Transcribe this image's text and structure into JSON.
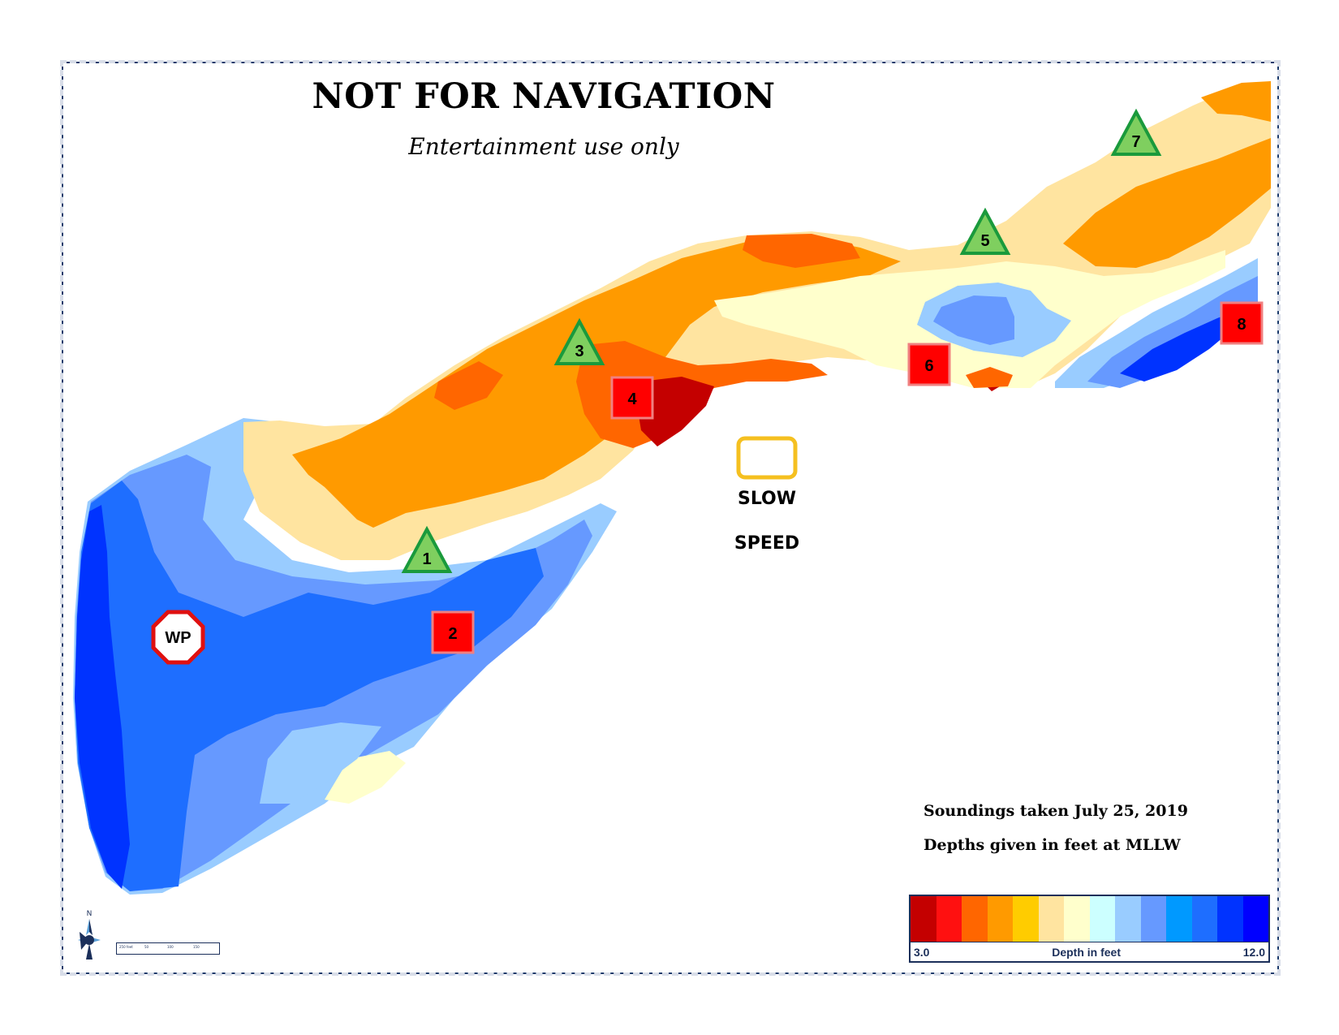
{
  "header": {
    "title": "NOT FOR NAVIGATION",
    "subtitle": "Entertainment use only"
  },
  "notes": {
    "soundings": "Soundings taken July 25, 2019",
    "datum": "Depths given in feet at MLLW"
  },
  "slow_speed": {
    "word1": "SLOW",
    "word2": "SPEED"
  },
  "markers": {
    "green_triangles": [
      "1",
      "3",
      "5",
      "7"
    ],
    "red_squares": [
      "2",
      "4",
      "6",
      "8"
    ],
    "warning": "WP"
  },
  "legend": {
    "title": "Depth in feet",
    "min": "3.0",
    "max": "12.0",
    "colors": [
      "#c40000",
      "#ff1010",
      "#ff6600",
      "#ff9a00",
      "#ffcc00",
      "#ffe4a0",
      "#ffffcc",
      "#ccffff",
      "#99ccff",
      "#6699ff",
      "#0099ff",
      "#1e6eff",
      "#0033ff",
      "#0000ff"
    ]
  },
  "scale": {
    "labels": [
      "250 feet",
      "50",
      "100",
      "150"
    ]
  },
  "compass": {
    "north_label": "N"
  },
  "colors": {
    "border": "#1b3a6b",
    "marker_green": "#7fcf5f",
    "marker_green_stroke": "#1a9a3c",
    "marker_red": "#ff0000",
    "marker_red_stroke": "#f08080",
    "slow_box": "#f5c020"
  }
}
